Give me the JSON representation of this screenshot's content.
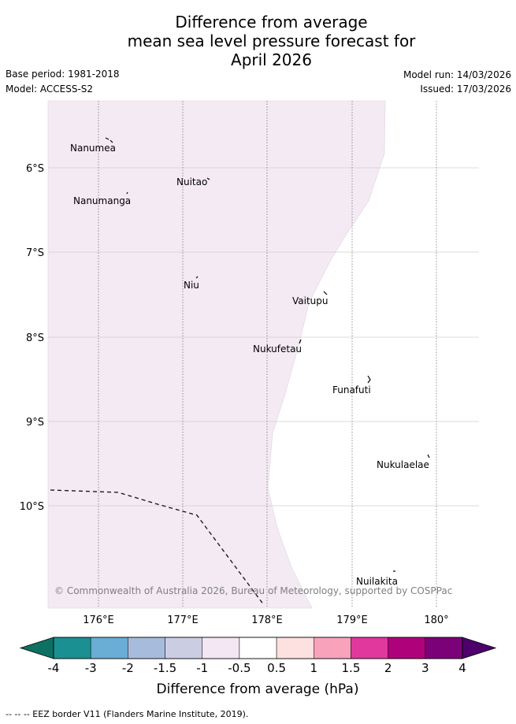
{
  "title": {
    "line1": "Difference from average",
    "line2": "mean sea level pressure forecast for",
    "line3": "April 2026"
  },
  "meta": {
    "base_period": "Base period: 1981-2018",
    "model": "Model: ACCESS-S2",
    "model_run": "Model run: 14/03/2026",
    "issued": "Issued: 17/03/2026"
  },
  "map": {
    "lon_labels": [
      "176°E",
      "177°E",
      "178°E",
      "179°E",
      "180°"
    ],
    "lat_labels": [
      "6°S",
      "7°S",
      "8°S",
      "9°S",
      "10°S"
    ],
    "islands": [
      {
        "name": "Nanumea"
      },
      {
        "name": "Nuitao"
      },
      {
        "name": "Nanumanga"
      },
      {
        "name": "Niu"
      },
      {
        "name": "Vaitupu"
      },
      {
        "name": "Nukufetau"
      },
      {
        "name": "Funafuti"
      },
      {
        "name": "Nukulaelae"
      },
      {
        "name": "Nuilakita"
      }
    ],
    "copyright": "© Commonwealth of Australia 2026, Bureau of Meteorology, supported by COSPPac",
    "fill_colors": {
      "region_-1_-0.5": "#f3eaf3",
      "region_-0.5_0.5": "#ffffff"
    }
  },
  "colorbar": {
    "title": "Difference from average (hPa)",
    "ticks": [
      "-4",
      "-3",
      "-2",
      "-1.5",
      "-1",
      "-0.5",
      "0.5",
      "1",
      "1.5",
      "2",
      "3",
      "4"
    ],
    "colors": [
      "#1a9092",
      "#6aadd5",
      "#a7bcdc",
      "#cbcee3",
      "#f2e7f2",
      "#ffffff",
      "#fde0e0",
      "#f8a2bc",
      "#e0389d",
      "#af027a",
      "#7a0177"
    ],
    "under_color": "#0e7063",
    "over_color": "#4d006b"
  },
  "footnote": "-- -- -- EEZ border V11 (Flanders Marine Institute, 2019)."
}
